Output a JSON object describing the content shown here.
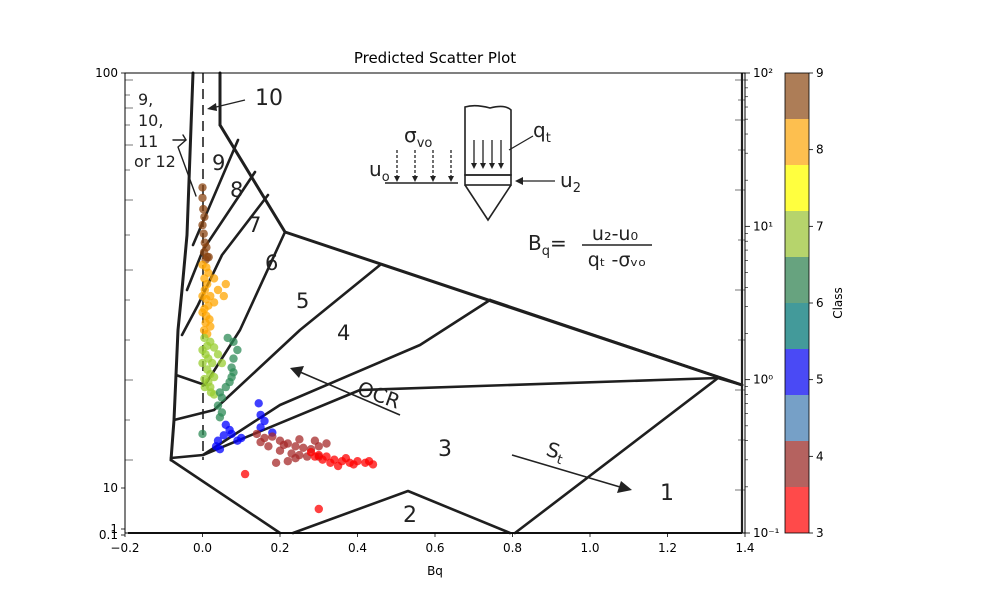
{
  "chart_data": {
    "type": "scatter",
    "title": "Predicted Scatter Plot",
    "xlabel": "Bq",
    "ylabel": "",
    "xlim": [
      -0.2,
      1.4
    ],
    "x_ticks": [
      "−0.2",
      "0.0",
      "0.2",
      "0.4",
      "0.6",
      "0.8",
      "1.0",
      "1.2",
      "1.4"
    ],
    "left_axis_labels": [
      "100",
      "10",
      "1",
      "0.1"
    ],
    "right_axis": {
      "scale": "log",
      "range": [
        0.1,
        100
      ],
      "ticks": [
        "10²",
        "10¹",
        "10⁰",
        "10⁻¹"
      ]
    },
    "grid": false,
    "colorbar": {
      "label": "Class",
      "ticks": [
        "3",
        "4",
        "5",
        "6",
        "7",
        "8",
        "9"
      ],
      "colors": [
        "#ff4a4a",
        "#b5625f",
        "#76a0c7",
        "#4a4af5",
        "#439a9a",
        "#67a37f",
        "#b6d46c",
        "#ffff3f",
        "#fdbf4f",
        "#ad7d57"
      ]
    },
    "background_diagram": {
      "zones": [
        "1",
        "2",
        "3",
        "4",
        "5",
        "6",
        "7",
        "8",
        "9",
        "10"
      ],
      "notes": {
        "zone_9_12": [
          "9,",
          "10,",
          "11",
          "or 12"
        ],
        "ocr": "OCR",
        "st": "S",
        "st_sub": "t"
      },
      "formula": {
        "sigma": "σ",
        "sigma_sub": "vo",
        "qt": "q",
        "qt_sub": "t",
        "uo": "u",
        "uo_sub": "o",
        "u2": "u",
        "u2_sub": "2",
        "bq": "B",
        "bq_sub": "q",
        "numerator": "u₂-u₀",
        "denominator": "qₜ -σᵥₒ"
      }
    },
    "series": [
      {
        "class": 9,
        "color": "#8b4513",
        "points": [
          [
            0.0,
            53
          ],
          [
            0.0,
            50
          ],
          [
            0.002,
            47
          ],
          [
            0.005,
            45
          ],
          [
            0.0,
            43
          ],
          [
            0.003,
            41
          ],
          [
            0.006,
            39
          ],
          [
            0.01,
            38
          ],
          [
            0.004,
            37
          ],
          [
            0.012,
            36
          ],
          [
            0.008,
            35.5
          ],
          [
            0.016,
            36
          ]
        ]
      },
      {
        "class": 8,
        "color": "#ffa500",
        "points": [
          [
            0.0,
            34.5
          ],
          [
            0.01,
            34
          ],
          [
            0.015,
            33
          ],
          [
            0.005,
            32
          ],
          [
            0.012,
            31
          ],
          [
            0.006,
            30
          ],
          [
            0.0,
            29
          ],
          [
            0.01,
            28.5
          ],
          [
            0.015,
            27.5
          ],
          [
            0.005,
            27
          ],
          [
            0.0,
            26.5
          ],
          [
            0.01,
            26
          ],
          [
            0.018,
            25.5
          ],
          [
            0.008,
            25
          ],
          [
            0.02,
            24.5
          ],
          [
            0.004,
            24
          ],
          [
            0.012,
            23.5
          ],
          [
            0.03,
            28
          ],
          [
            0.04,
            30
          ],
          [
            0.055,
            29
          ],
          [
            0.02,
            29
          ],
          [
            0.03,
            32
          ],
          [
            0.06,
            31
          ]
        ]
      },
      {
        "class": 7,
        "color": "#9acd32",
        "points": [
          [
            0.005,
            23
          ],
          [
            0.012,
            22
          ],
          [
            0.0,
            21.5
          ],
          [
            0.02,
            22.5
          ],
          [
            0.03,
            21.8
          ],
          [
            0.008,
            21
          ],
          [
            0.015,
            20.5
          ],
          [
            0.025,
            20
          ],
          [
            0.0,
            20
          ],
          [
            0.012,
            19.3
          ],
          [
            0.02,
            18.8
          ],
          [
            0.005,
            18.3
          ],
          [
            0.015,
            18
          ],
          [
            0.03,
            18.5
          ],
          [
            0.02,
            17.5
          ],
          [
            0.006,
            17.5
          ],
          [
            0.022,
            17
          ],
          [
            0.04,
            21
          ],
          [
            0.05,
            20
          ],
          [
            0.03,
            16.8
          ]
        ]
      },
      {
        "class": 6,
        "color": "#2e8b57",
        "points": [
          [
            0.09,
            21.5
          ],
          [
            0.08,
            20.5
          ],
          [
            0.075,
            19.5
          ],
          [
            0.08,
            19
          ],
          [
            0.075,
            18.5
          ],
          [
            0.07,
            18
          ],
          [
            0.06,
            17.5
          ],
          [
            0.05,
            16.5
          ],
          [
            0.045,
            17
          ],
          [
            0.04,
            15.8
          ],
          [
            0.05,
            15.2
          ],
          [
            0.045,
            14.8
          ],
          [
            0.0,
            13.5
          ],
          [
            0.08,
            22.5
          ],
          [
            0.065,
            23
          ]
        ]
      },
      {
        "class": 5,
        "color": "#0000ff",
        "points": [
          [
            0.145,
            16
          ],
          [
            0.15,
            15
          ],
          [
            0.16,
            14.5
          ],
          [
            0.15,
            14
          ],
          [
            0.06,
            14.2
          ],
          [
            0.07,
            13.8
          ],
          [
            0.075,
            13.5
          ],
          [
            0.18,
            13.6
          ],
          [
            0.1,
            13.2
          ],
          [
            0.055,
            13.4
          ],
          [
            0.035,
            12.6
          ],
          [
            0.045,
            12.4
          ],
          [
            0.09,
            13
          ],
          [
            0.04,
            13
          ]
        ]
      },
      {
        "class": 4,
        "color": "#a52a2a",
        "points": [
          [
            0.14,
            13.5
          ],
          [
            0.16,
            13.2
          ],
          [
            0.18,
            13.3
          ],
          [
            0.2,
            13
          ],
          [
            0.22,
            12.8
          ],
          [
            0.24,
            12.6
          ],
          [
            0.26,
            12.5
          ],
          [
            0.28,
            12.4
          ],
          [
            0.3,
            12.6
          ],
          [
            0.32,
            12.8
          ],
          [
            0.2,
            12.3
          ],
          [
            0.23,
            12.1
          ],
          [
            0.25,
            12
          ],
          [
            0.27,
            11.9
          ],
          [
            0.22,
            11.6
          ],
          [
            0.19,
            11.5
          ],
          [
            0.21,
            12.7
          ],
          [
            0.25,
            13.1
          ],
          [
            0.29,
            13
          ],
          [
            0.15,
            12.9
          ],
          [
            0.17,
            12.6
          ],
          [
            0.24,
            11.8
          ],
          [
            0.3,
            11.9
          ]
        ]
      },
      {
        "class": 3,
        "color": "#ff0000",
        "points": [
          [
            0.28,
            12.2
          ],
          [
            0.3,
            12
          ],
          [
            0.32,
            11.9
          ],
          [
            0.34,
            11.7
          ],
          [
            0.36,
            11.6
          ],
          [
            0.38,
            11.5
          ],
          [
            0.4,
            11.6
          ],
          [
            0.42,
            11.5
          ],
          [
            0.44,
            11.4
          ],
          [
            0.35,
            11.3
          ],
          [
            0.33,
            11.5
          ],
          [
            0.37,
            11.8
          ],
          [
            0.39,
            11.4
          ],
          [
            0.31,
            11.7
          ],
          [
            0.29,
            11.9
          ],
          [
            0.43,
            11.6
          ],
          [
            0.11,
            10.8
          ],
          [
            0.3,
            8.9
          ]
        ]
      }
    ]
  }
}
